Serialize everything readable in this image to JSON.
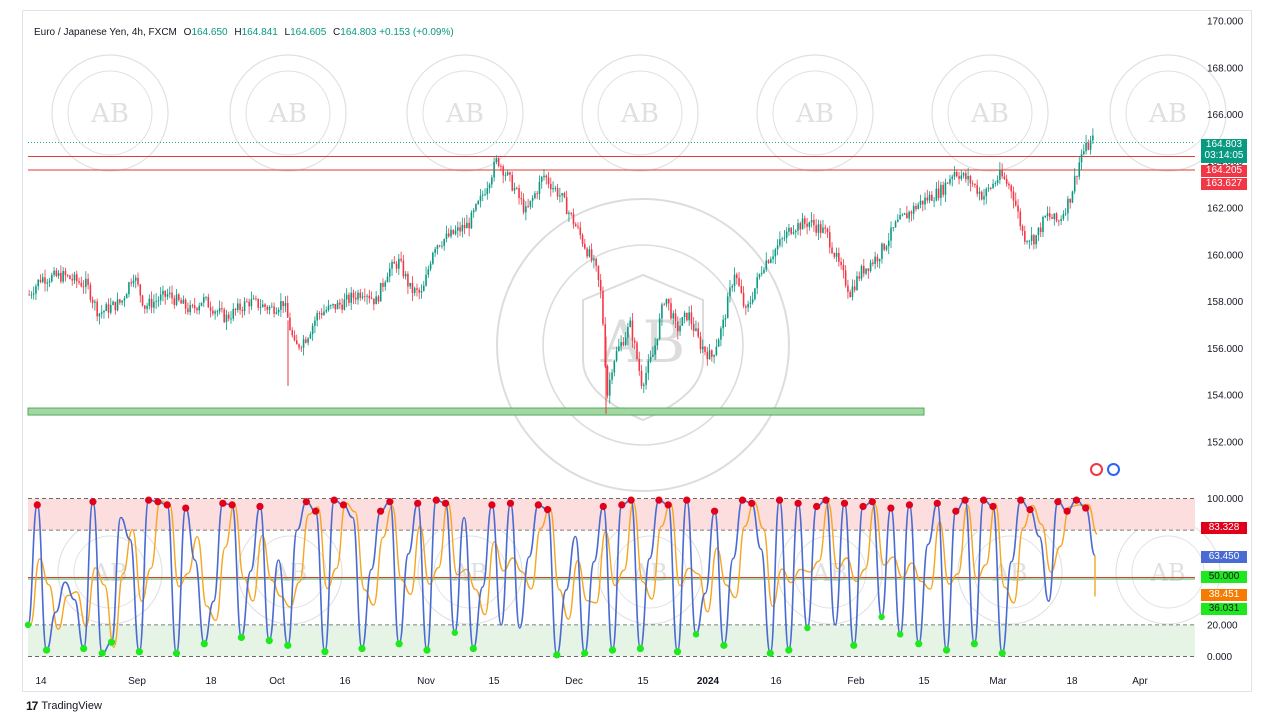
{
  "legend": {
    "symbol": "Euro / Japanese Yen, 4h, FXCM",
    "o_label": "O",
    "o_value": "164.650",
    "h_label": "H",
    "h_value": "164.841",
    "l_label": "L",
    "l_value": "164.605",
    "c_label": "C",
    "c_value": "164.803",
    "change": "+0.153 (+0.09%)"
  },
  "price_tags": {
    "last": "164.803",
    "countdown": "03:14:05",
    "line1": "164.205",
    "line2": "163.627"
  },
  "osc_tags": {
    "red": "83.328",
    "blue": "63.450",
    "mid": "50.000",
    "orange": "38.451",
    "green": "36.031"
  },
  "footer": {
    "brand": "TradingView"
  },
  "colors": {
    "up": "#089981",
    "down": "#f23645",
    "blue_line": "#4a6bd1",
    "orange_line": "#f5a623",
    "green_zone": "#a5d6a7",
    "red_zone": "#fcdede",
    "red_dot": "#e0001b",
    "green_dot": "#1ee81e"
  },
  "chart_data": [
    {
      "type": "candlestick",
      "title": "Euro / Japanese Yen, 4h, FXCM",
      "y_ticks": [
        "170.000",
        "168.000",
        "166.000",
        "164.000",
        "162.000",
        "160.000",
        "158.000",
        "156.000",
        "154.000",
        "152.000"
      ],
      "ylim": [
        150.8,
        170.3
      ],
      "x_ticks": [
        "14",
        "Sep",
        "18",
        "Oct",
        "16",
        "Nov",
        "15",
        "Dec",
        "15",
        "2024",
        "16",
        "Feb",
        "15",
        "Mar",
        "18",
        "Apr"
      ],
      "horizontal_lines": [
        164.205,
        163.627
      ],
      "support_zone": [
        153.15,
        153.45
      ],
      "last_price": 164.803,
      "close_path": [
        {
          "x": 0.0,
          "y": 158.3
        },
        {
          "x": 0.01,
          "y": 159.0
        },
        {
          "x": 0.03,
          "y": 159.1
        },
        {
          "x": 0.05,
          "y": 158.7
        },
        {
          "x": 0.06,
          "y": 157.5
        },
        {
          "x": 0.08,
          "y": 158.0
        },
        {
          "x": 0.09,
          "y": 159.2
        },
        {
          "x": 0.1,
          "y": 157.8
        },
        {
          "x": 0.12,
          "y": 158.3
        },
        {
          "x": 0.14,
          "y": 157.6
        },
        {
          "x": 0.15,
          "y": 158.1
        },
        {
          "x": 0.17,
          "y": 157.3
        },
        {
          "x": 0.19,
          "y": 158.0
        },
        {
          "x": 0.21,
          "y": 157.7
        },
        {
          "x": 0.22,
          "y": 158.0
        },
        {
          "x": 0.23,
          "y": 156.0
        },
        {
          "x": 0.24,
          "y": 156.5
        },
        {
          "x": 0.25,
          "y": 157.5
        },
        {
          "x": 0.27,
          "y": 157.9
        },
        {
          "x": 0.29,
          "y": 158.5
        },
        {
          "x": 0.3,
          "y": 158.0
        },
        {
          "x": 0.31,
          "y": 159.3
        },
        {
          "x": 0.32,
          "y": 159.7
        },
        {
          "x": 0.33,
          "y": 158.5
        },
        {
          "x": 0.34,
          "y": 158.3
        },
        {
          "x": 0.35,
          "y": 160.4
        },
        {
          "x": 0.37,
          "y": 161.0
        },
        {
          "x": 0.38,
          "y": 161.3
        },
        {
          "x": 0.39,
          "y": 162.3
        },
        {
          "x": 0.4,
          "y": 163.5
        },
        {
          "x": 0.405,
          "y": 164.1
        },
        {
          "x": 0.42,
          "y": 162.8
        },
        {
          "x": 0.43,
          "y": 161.8
        },
        {
          "x": 0.445,
          "y": 163.4
        },
        {
          "x": 0.46,
          "y": 162.5
        },
        {
          "x": 0.475,
          "y": 161.0
        },
        {
          "x": 0.49,
          "y": 159.4
        },
        {
          "x": 0.495,
          "y": 158.2
        },
        {
          "x": 0.5,
          "y": 154.0
        },
        {
          "x": 0.505,
          "y": 155.5
        },
        {
          "x": 0.52,
          "y": 157.0
        },
        {
          "x": 0.53,
          "y": 154.5
        },
        {
          "x": 0.54,
          "y": 155.8
        },
        {
          "x": 0.55,
          "y": 158.3
        },
        {
          "x": 0.56,
          "y": 156.8
        },
        {
          "x": 0.57,
          "y": 157.5
        },
        {
          "x": 0.58,
          "y": 156.2
        },
        {
          "x": 0.59,
          "y": 155.6
        },
        {
          "x": 0.6,
          "y": 157.0
        },
        {
          "x": 0.61,
          "y": 159.3
        },
        {
          "x": 0.62,
          "y": 157.5
        },
        {
          "x": 0.635,
          "y": 159.6
        },
        {
          "x": 0.645,
          "y": 160.2
        },
        {
          "x": 0.66,
          "y": 161.2
        },
        {
          "x": 0.675,
          "y": 161.4
        },
        {
          "x": 0.69,
          "y": 160.9
        },
        {
          "x": 0.7,
          "y": 159.6
        },
        {
          "x": 0.71,
          "y": 158.4
        },
        {
          "x": 0.72,
          "y": 159.3
        },
        {
          "x": 0.735,
          "y": 160.0
        },
        {
          "x": 0.75,
          "y": 161.3
        },
        {
          "x": 0.77,
          "y": 162.2
        },
        {
          "x": 0.79,
          "y": 162.8
        },
        {
          "x": 0.8,
          "y": 163.6
        },
        {
          "x": 0.815,
          "y": 163.1
        },
        {
          "x": 0.825,
          "y": 162.5
        },
        {
          "x": 0.84,
          "y": 163.4
        },
        {
          "x": 0.85,
          "y": 162.8
        },
        {
          "x": 0.86,
          "y": 160.8
        },
        {
          "x": 0.87,
          "y": 160.7
        },
        {
          "x": 0.88,
          "y": 161.7
        },
        {
          "x": 0.89,
          "y": 161.4
        },
        {
          "x": 0.9,
          "y": 162.4
        },
        {
          "x": 0.91,
          "y": 164.3
        },
        {
          "x": 0.92,
          "y": 164.9
        }
      ]
    },
    {
      "type": "line",
      "title": "Stochastic oscillator",
      "y_ticks": [
        "100.000",
        "80.000",
        "60.000",
        "40.000",
        "20.000",
        "0.000"
      ],
      "ylim": [
        -1,
        101
      ],
      "overbought_zone": [
        80,
        100
      ],
      "oversold_zone": [
        0,
        20
      ],
      "middle_line": 50,
      "series": [
        {
          "name": "",
          "last": 63.45
        },
        {
          "name": "",
          "last": 38.451
        }
      ],
      "k_path": [
        20,
        96,
        4,
        28,
        47,
        36,
        5,
        98,
        2,
        9,
        88,
        74,
        3,
        99,
        98,
        96,
        2,
        94,
        61,
        8,
        35,
        97,
        96,
        12,
        54,
        95,
        10,
        61,
        7,
        80,
        98,
        92,
        3,
        99,
        96,
        88,
        5,
        55,
        92,
        98,
        8,
        65,
        97,
        4,
        99,
        97,
        15,
        88,
        5,
        44,
        96,
        20,
        97,
        18,
        63,
        96,
        93,
        1,
        42,
        76,
        2,
        60,
        95,
        4,
        96,
        99,
        5,
        62,
        99,
        96,
        3,
        99,
        14,
        40,
        92,
        7,
        62,
        99,
        97,
        68,
        2,
        99,
        4,
        97,
        18,
        95,
        99,
        20,
        97,
        7,
        95,
        98,
        25,
        94,
        14,
        96,
        8,
        71,
        97,
        4,
        92,
        99,
        8,
        99,
        95,
        2,
        60,
        99,
        93,
        76,
        35,
        98,
        92,
        99,
        94,
        64
      ]
    }
  ]
}
